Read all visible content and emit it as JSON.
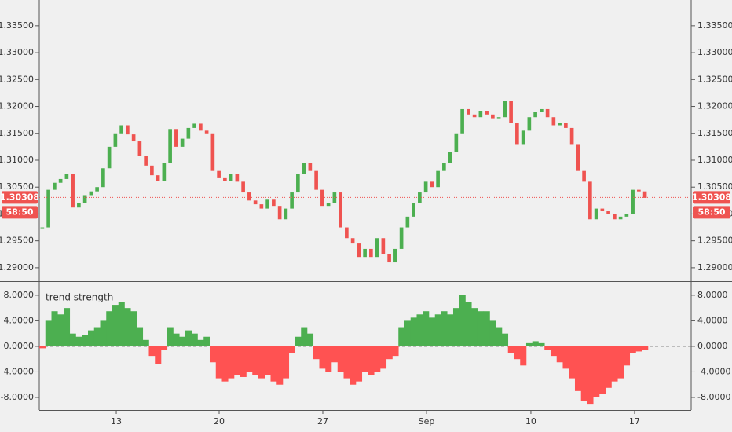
{
  "chart_data": [
    {
      "type": "candlestick",
      "close": [
        1.2975,
        1.3045,
        1.3058,
        1.3065,
        1.3075,
        1.3012,
        1.302,
        1.3035,
        1.3042,
        1.305,
        1.3085,
        1.3125,
        1.315,
        1.3165,
        1.3148,
        1.3135,
        1.3108,
        1.309,
        1.3072,
        1.3062,
        1.3095,
        1.3158,
        1.3125,
        1.314,
        1.316,
        1.3168,
        1.3155,
        1.315,
        1.308,
        1.3068,
        1.3062,
        1.3075,
        1.306,
        1.304,
        1.3025,
        1.3018,
        1.301,
        1.3028,
        1.3015,
        1.299,
        1.301,
        1.304,
        1.3075,
        1.3095,
        1.308,
        1.3045,
        1.3015,
        1.302,
        1.304,
        1.2975,
        1.2955,
        1.2945,
        1.292,
        1.2935,
        1.292,
        1.2955,
        1.2925,
        1.291,
        1.2935,
        1.2975,
        1.2995,
        1.302,
        1.304,
        1.306,
        1.305,
        1.308,
        1.3095,
        1.3115,
        1.315,
        1.3195,
        1.3185,
        1.318,
        1.3192,
        1.3185,
        1.3178,
        1.318,
        1.321,
        1.317,
        1.313,
        1.3155,
        1.318,
        1.319,
        1.3195,
        1.318,
        1.3165,
        1.317,
        1.316,
        1.313,
        1.308,
        1.306,
        1.299,
        1.301,
        1.3005,
        1.3,
        1.299,
        1.2995,
        1.3,
        1.3045,
        1.3042,
        1.303
      ],
      "up_color": "#4caf50",
      "down_color": "#ef5350",
      "last_price": 1.30308,
      "countdown": "58:50",
      "price_line_color": "#ef5350",
      "ylim": [
        1.2875,
        1.3398
      ],
      "yticks": [
        {
          "value": 1.29,
          "label": "1.29000"
        },
        {
          "value": 1.295,
          "label": "1.29500"
        },
        {
          "value": 1.3,
          "label": "1.30000"
        },
        {
          "value": 1.305,
          "label": "1.30500"
        },
        {
          "value": 1.31,
          "label": "1.31000"
        },
        {
          "value": 1.315,
          "label": "1.31500"
        },
        {
          "value": 1.32,
          "label": "1.32000"
        },
        {
          "value": 1.325,
          "label": "1.32500"
        },
        {
          "value": 1.33,
          "label": "1.33000"
        },
        {
          "value": 1.335,
          "label": "1.33500"
        }
      ]
    },
    {
      "type": "histogram-area",
      "title": "trend strength",
      "values": [
        -0.3,
        4,
        5.5,
        5,
        6,
        2,
        1.5,
        1.8,
        2.5,
        3,
        4,
        5.5,
        6.5,
        7,
        6,
        5.5,
        3,
        1,
        -1.5,
        -2.8,
        -0.5,
        3,
        2,
        1.5,
        2.5,
        2,
        1,
        1.5,
        -2.5,
        -5,
        -5.5,
        -5,
        -4.5,
        -4.8,
        -4,
        -4.5,
        -5,
        -4.5,
        -5.5,
        -6,
        -5,
        -1,
        1.5,
        3,
        2,
        -2,
        -3.5,
        -4,
        -2.5,
        -4,
        -5,
        -6,
        -5.5,
        -4,
        -4.5,
        -4,
        -3.5,
        -2,
        -1.5,
        3,
        4,
        4.5,
        5,
        5.5,
        4.5,
        5,
        5.5,
        5,
        6,
        8,
        7,
        6,
        5.5,
        5.5,
        4,
        3,
        2,
        -1,
        -2,
        -3,
        0.5,
        0.8,
        0.5,
        -0.5,
        -1.5,
        -2.5,
        -3.5,
        -5,
        -7,
        -8.5,
        -9,
        -8,
        -7.5,
        -6.5,
        -5.5,
        -5,
        -3,
        -1,
        -0.8,
        -0.5
      ],
      "up_color": "#4caf50",
      "down_color": "#ff5252",
      "ylim": [
        -9.97,
        10.2
      ],
      "yticks": [
        {
          "value": 8,
          "label": "8.0000"
        },
        {
          "value": 4,
          "label": "4.0000"
        },
        {
          "value": 0,
          "label": "0.0000"
        },
        {
          "value": -4,
          "label": "-4.0000"
        },
        {
          "value": -8,
          "label": "-8.0000"
        }
      ],
      "xlim": [
        -0.5,
        106.6
      ],
      "xticks": [
        {
          "value": 12.15,
          "label": "13"
        },
        {
          "value": 29.05,
          "label": "20"
        },
        {
          "value": 46.08,
          "label": "27"
        },
        {
          "value": 63.11,
          "label": "Sep"
        },
        {
          "value": 80.27,
          "label": "10"
        },
        {
          "value": 97.3,
          "label": "17"
        }
      ]
    }
  ]
}
